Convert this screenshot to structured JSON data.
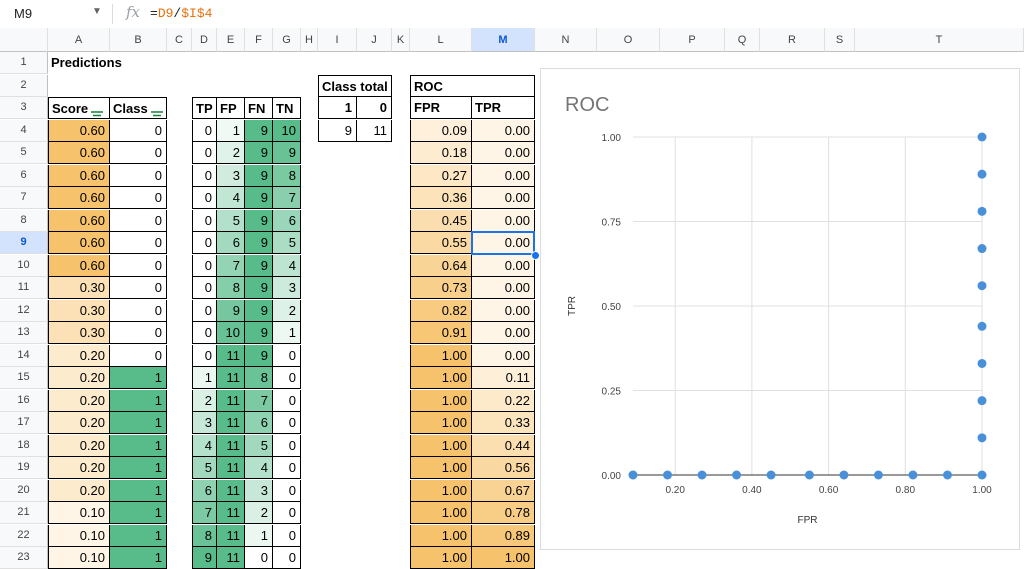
{
  "formula_bar": {
    "cell_ref": "M9",
    "fx_label": "fx",
    "formula": {
      "prefix": "=",
      "ref1": "D9",
      "op": "/",
      "ref2": "$I$4"
    }
  },
  "columns": [
    "A",
    "B",
    "C",
    "D",
    "E",
    "F",
    "G",
    "H",
    "I",
    "J",
    "K",
    "L",
    "M",
    "N",
    "O",
    "P",
    "Q",
    "R",
    "S",
    "T"
  ],
  "selected_column": "M",
  "selected_row": 9,
  "rows": [
    "1",
    "2",
    "3",
    "4",
    "5",
    "6",
    "7",
    "8",
    "9",
    "10",
    "11",
    "12",
    "13",
    "14",
    "15",
    "16",
    "17",
    "18",
    "19",
    "20",
    "21",
    "22",
    "23"
  ],
  "title": "Predictions",
  "headers": {
    "score": "Score",
    "class": "Class",
    "tp": "TP",
    "fp": "FP",
    "fn": "FN",
    "tn": "TN",
    "fpr": "FPR",
    "tpr": "TPR",
    "roc": "ROC",
    "class_total": "Class total"
  },
  "class_total": {
    "labels": [
      "1",
      "0"
    ],
    "values": [
      "9",
      "11"
    ]
  },
  "data_rows": [
    {
      "score": "0.60",
      "class": "0",
      "tp": "0",
      "fp": "1",
      "fn": "9",
      "tn": "10",
      "fpr": "0.09",
      "tpr": "0.00"
    },
    {
      "score": "0.60",
      "class": "0",
      "tp": "0",
      "fp": "2",
      "fn": "9",
      "tn": "9",
      "fpr": "0.18",
      "tpr": "0.00"
    },
    {
      "score": "0.60",
      "class": "0",
      "tp": "0",
      "fp": "3",
      "fn": "9",
      "tn": "8",
      "fpr": "0.27",
      "tpr": "0.00"
    },
    {
      "score": "0.60",
      "class": "0",
      "tp": "0",
      "fp": "4",
      "fn": "9",
      "tn": "7",
      "fpr": "0.36",
      "tpr": "0.00"
    },
    {
      "score": "0.60",
      "class": "0",
      "tp": "0",
      "fp": "5",
      "fn": "9",
      "tn": "6",
      "fpr": "0.45",
      "tpr": "0.00"
    },
    {
      "score": "0.60",
      "class": "0",
      "tp": "0",
      "fp": "6",
      "fn": "9",
      "tn": "5",
      "fpr": "0.55",
      "tpr": "0.00"
    },
    {
      "score": "0.60",
      "class": "0",
      "tp": "0",
      "fp": "7",
      "fn": "9",
      "tn": "4",
      "fpr": "0.64",
      "tpr": "0.00"
    },
    {
      "score": "0.30",
      "class": "0",
      "tp": "0",
      "fp": "8",
      "fn": "9",
      "tn": "3",
      "fpr": "0.73",
      "tpr": "0.00"
    },
    {
      "score": "0.30",
      "class": "0",
      "tp": "0",
      "fp": "9",
      "fn": "9",
      "tn": "2",
      "fpr": "0.82",
      "tpr": "0.00"
    },
    {
      "score": "0.30",
      "class": "0",
      "tp": "0",
      "fp": "10",
      "fn": "9",
      "tn": "1",
      "fpr": "0.91",
      "tpr": "0.00"
    },
    {
      "score": "0.20",
      "class": "0",
      "tp": "0",
      "fp": "11",
      "fn": "9",
      "tn": "0",
      "fpr": "1.00",
      "tpr": "0.00"
    },
    {
      "score": "0.20",
      "class": "1",
      "tp": "1",
      "fp": "11",
      "fn": "8",
      "tn": "0",
      "fpr": "1.00",
      "tpr": "0.11"
    },
    {
      "score": "0.20",
      "class": "1",
      "tp": "2",
      "fp": "11",
      "fn": "7",
      "tn": "0",
      "fpr": "1.00",
      "tpr": "0.22"
    },
    {
      "score": "0.20",
      "class": "1",
      "tp": "3",
      "fp": "11",
      "fn": "6",
      "tn": "0",
      "fpr": "1.00",
      "tpr": "0.33"
    },
    {
      "score": "0.20",
      "class": "1",
      "tp": "4",
      "fp": "11",
      "fn": "5",
      "tn": "0",
      "fpr": "1.00",
      "tpr": "0.44"
    },
    {
      "score": "0.20",
      "class": "1",
      "tp": "5",
      "fp": "11",
      "fn": "4",
      "tn": "0",
      "fpr": "1.00",
      "tpr": "0.56"
    },
    {
      "score": "0.20",
      "class": "1",
      "tp": "6",
      "fp": "11",
      "fn": "3",
      "tn": "0",
      "fpr": "1.00",
      "tpr": "0.67"
    },
    {
      "score": "0.10",
      "class": "1",
      "tp": "7",
      "fp": "11",
      "fn": "2",
      "tn": "0",
      "fpr": "1.00",
      "tpr": "0.78"
    },
    {
      "score": "0.10",
      "class": "1",
      "tp": "8",
      "fp": "11",
      "fn": "1",
      "tn": "0",
      "fpr": "1.00",
      "tpr": "0.89"
    },
    {
      "score": "0.10",
      "class": "1",
      "tp": "9",
      "fp": "11",
      "fn": "0",
      "tn": "0",
      "fpr": "1.00",
      "tpr": "1.00"
    }
  ],
  "colors": {
    "selection": "#1a73e8",
    "point": "#4a90d9",
    "orange_high": "#f6c26b",
    "orange_low": "#fff5e6",
    "green_high": "#57bb8a",
    "green_low": "#ffffff"
  },
  "chart_data": {
    "type": "scatter",
    "title": "ROC",
    "xlabel": "FPR",
    "ylabel": "TPR",
    "x_ticks": [
      "0.20",
      "0.40",
      "0.60",
      "0.80",
      "1.00"
    ],
    "y_ticks": [
      "0.00",
      "0.25",
      "0.50",
      "0.75",
      "1.00"
    ],
    "xlim": [
      0.09,
      1.0
    ],
    "ylim": [
      0,
      1
    ],
    "grid": true,
    "points": [
      {
        "x": 0.09,
        "y": 0
      },
      {
        "x": 0.18,
        "y": 0
      },
      {
        "x": 0.27,
        "y": 0
      },
      {
        "x": 0.36,
        "y": 0
      },
      {
        "x": 0.45,
        "y": 0
      },
      {
        "x": 0.55,
        "y": 0
      },
      {
        "x": 0.64,
        "y": 0
      },
      {
        "x": 0.73,
        "y": 0
      },
      {
        "x": 0.82,
        "y": 0
      },
      {
        "x": 0.91,
        "y": 0
      },
      {
        "x": 1.0,
        "y": 0
      },
      {
        "x": 1.0,
        "y": 0.11
      },
      {
        "x": 1.0,
        "y": 0.22
      },
      {
        "x": 1.0,
        "y": 0.33
      },
      {
        "x": 1.0,
        "y": 0.44
      },
      {
        "x": 1.0,
        "y": 0.56
      },
      {
        "x": 1.0,
        "y": 0.67
      },
      {
        "x": 1.0,
        "y": 0.78
      },
      {
        "x": 1.0,
        "y": 0.89
      },
      {
        "x": 1.0,
        "y": 1.0
      }
    ]
  }
}
